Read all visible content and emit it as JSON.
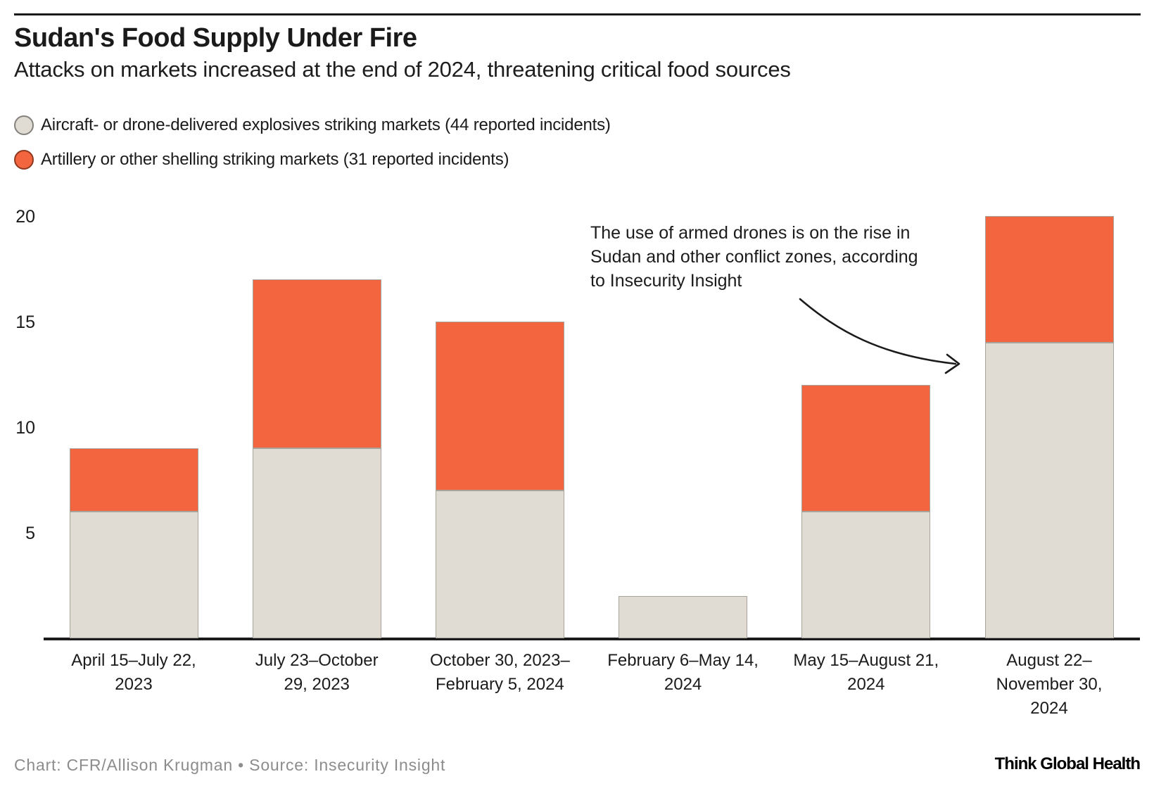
{
  "header": {
    "title": "Sudan's Food Supply Under Fire",
    "subtitle": "Attacks on markets increased at the end of 2024, threatening critical food sources"
  },
  "legend": [
    {
      "label": "Aircraft- or drone-delivered explosives striking markets (44 reported incidents)",
      "color": "#e0dcd3",
      "border_color": "#85827c"
    },
    {
      "label": "Artillery or other shelling striking markets (31 reported incidents)",
      "color": "#f3653e",
      "border_color": "#8f3a20"
    }
  ],
  "chart_data": {
    "type": "bar",
    "stacked": true,
    "title": "Sudan's Food Supply Under Fire",
    "subtitle": "Attacks on markets increased at the end of 2024, threatening critical food sources",
    "categories": [
      [
        "April 15–July 22,",
        "2023"
      ],
      [
        "July 23–October",
        "29, 2023"
      ],
      [
        "October 30, 2023–",
        "February 5, 2024"
      ],
      [
        "February 6–May 14,",
        "2024"
      ],
      [
        "May 15–August 21,",
        "2024"
      ],
      [
        "August 22–",
        "November 30,",
        "2024"
      ]
    ],
    "series": [
      {
        "name": "Aircraft- or drone-delivered explosives striking markets",
        "reported_incidents": 44,
        "color": "#e0dcd3",
        "values": [
          6,
          9,
          7,
          2,
          6,
          14
        ]
      },
      {
        "name": "Artillery or other shelling striking markets",
        "reported_incidents": 31,
        "color": "#f3653e",
        "values": [
          3,
          8,
          8,
          0,
          6,
          6
        ]
      }
    ],
    "totals": [
      9,
      17,
      15,
      2,
      12,
      20
    ],
    "y_ticks": [
      5,
      10,
      15,
      20
    ],
    "ylim": [
      0,
      20
    ],
    "grid": false,
    "legend_position": "top-left",
    "annotation_text": "The use of armed drones is on the rise in Sudan and other conflict zones, according to Insecurity Insight"
  },
  "annotation": {
    "lines": [
      "The use of armed drones is on the rise in",
      "Sudan and other conflict zones, according",
      "to Insecurity Insight"
    ]
  },
  "footer": {
    "credit": "Chart: CFR/Allison Krugman • Source: Insecurity Insight",
    "logo": "Think Global Health"
  },
  "colors": {
    "bar_gray": "#e0dcd3",
    "bar_orange": "#f3653e",
    "bar_border": "#a8a49c",
    "axis": "#1b1b1b",
    "footer_gray": "#8c8c8c"
  }
}
